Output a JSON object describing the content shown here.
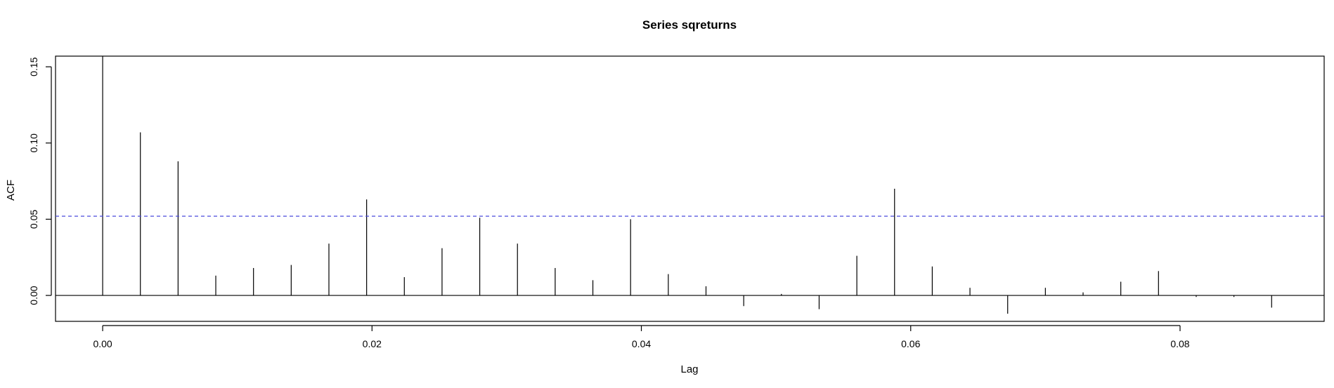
{
  "chart_data": {
    "type": "bar",
    "subtype": "acf",
    "title": "Series  sqreturns",
    "xlabel": "Lag",
    "ylabel": "ACF",
    "xlim": [
      -0.0035,
      0.0907
    ],
    "ylim": [
      -0.017,
      0.157
    ],
    "x_ticks": [
      0.0,
      0.02,
      0.04,
      0.06,
      0.08
    ],
    "x_tick_labels": [
      "0.00",
      "0.02",
      "0.04",
      "0.06",
      "0.08"
    ],
    "y_ticks": [
      0.0,
      0.05,
      0.1,
      0.15
    ],
    "y_tick_labels": [
      "0.00",
      "0.05",
      "0.10",
      "0.15"
    ],
    "zero_line": 0,
    "confidence_bound": 0.052,
    "confidence_color": "#4b4bdc",
    "bar_color": "#000000",
    "grid": false,
    "legend": "none",
    "x": [
      0.0,
      0.0028,
      0.0056,
      0.0084,
      0.0112,
      0.014,
      0.0168,
      0.0196,
      0.0224,
      0.0252,
      0.028,
      0.0308,
      0.0336,
      0.0364,
      0.0392,
      0.042,
      0.0448,
      0.0476,
      0.0504,
      0.0532,
      0.056,
      0.0588,
      0.0616,
      0.0644,
      0.0672,
      0.07,
      0.0728,
      0.0756,
      0.0784,
      0.0812,
      0.084,
      0.0868
    ],
    "values": [
      0.157,
      0.107,
      0.088,
      0.013,
      0.018,
      0.02,
      0.034,
      0.063,
      0.012,
      0.031,
      0.051,
      0.034,
      0.018,
      0.01,
      0.05,
      0.014,
      0.006,
      -0.007,
      0.001,
      -0.009,
      0.026,
      0.07,
      0.019,
      0.005,
      -0.012,
      0.005,
      0.002,
      0.009,
      0.016,
      -0.001,
      -0.001,
      -0.008
    ]
  }
}
